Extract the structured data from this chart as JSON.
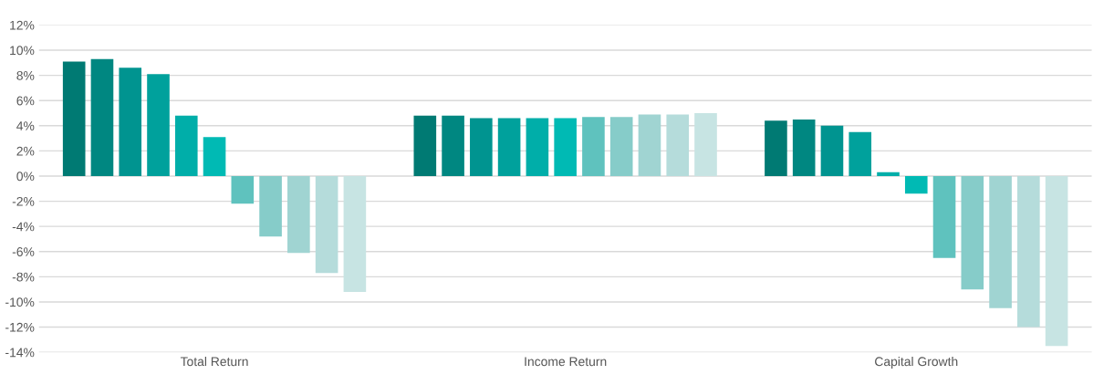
{
  "chart_data": {
    "type": "bar",
    "categories": [
      "Total Return",
      "Income Return",
      "Capital Growth"
    ],
    "series": [
      {
        "color": "#007a73",
        "values": [
          9.1,
          4.8,
          4.4
        ]
      },
      {
        "color": "#008781",
        "values": [
          9.3,
          4.8,
          4.5
        ]
      },
      {
        "color": "#009490",
        "values": [
          8.6,
          4.6,
          4.0
        ]
      },
      {
        "color": "#00a19c",
        "values": [
          8.1,
          4.6,
          3.5
        ]
      },
      {
        "color": "#00aea9",
        "values": [
          4.8,
          4.6,
          0.3
        ]
      },
      {
        "color": "#00bab4",
        "values": [
          3.1,
          4.6,
          -1.4
        ]
      },
      {
        "color": "#5fc2be",
        "values": [
          -2.2,
          4.7,
          -6.5
        ]
      },
      {
        "color": "#86ccc9",
        "values": [
          -4.8,
          4.7,
          -9.0
        ]
      },
      {
        "color": "#a0d4d2",
        "values": [
          -6.1,
          4.9,
          -10.5
        ]
      },
      {
        "color": "#b5dcdb",
        "values": [
          -7.7,
          4.9,
          -12.0
        ]
      },
      {
        "color": "#c7e4e3",
        "values": [
          -9.2,
          5.0,
          -13.5
        ]
      }
    ],
    "ylim": [
      -14,
      12
    ],
    "yticks": [
      {
        "value": -14,
        "label": "-14%"
      },
      {
        "value": -12,
        "label": "-12%"
      },
      {
        "value": -10,
        "label": "-10%"
      },
      {
        "value": -8,
        "label": "-8%"
      },
      {
        "value": -6,
        "label": "-6%"
      },
      {
        "value": -4,
        "label": "-4%"
      },
      {
        "value": -2,
        "label": "-2%"
      },
      {
        "value": 0,
        "label": "0%"
      },
      {
        "value": 2,
        "label": "2%"
      },
      {
        "value": 4,
        "label": "4%"
      },
      {
        "value": 6,
        "label": "6%"
      },
      {
        "value": 8,
        "label": "8%"
      },
      {
        "value": 10,
        "label": "10%"
      },
      {
        "value": 12,
        "label": "12%"
      }
    ],
    "grid": "y"
  }
}
